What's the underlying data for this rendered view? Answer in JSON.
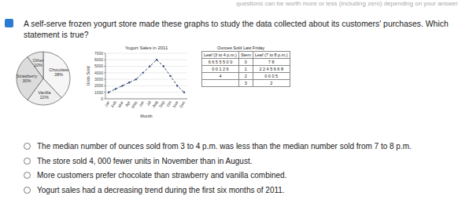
{
  "header": {
    "note": "questions can be worth more or less (including zero) depending on your answer"
  },
  "question": {
    "text": "A self-serve frozen yogurt store made these graphs to study the data collected about its customers' purchases. Which statement is true?"
  },
  "chart_data": [
    {
      "type": "pie",
      "categories": [
        "Chocolate",
        "Vanilla",
        "Strawberry",
        "Other"
      ],
      "values": [
        38,
        22,
        30,
        10
      ],
      "value_labels": [
        "38%",
        "22%",
        "30%",
        "10%"
      ],
      "colors": [
        "#f6f6f6",
        "#eeeeee",
        "#dcdcdc",
        "#e6e6e6"
      ],
      "data_labels": true
    },
    {
      "type": "line",
      "title": "Yogurt Sales in 2011",
      "x_label": "Month",
      "y_label": "Units Sold",
      "categories": [
        "Jan",
        "Feb",
        "Mar",
        "Apr",
        "May",
        "Jun",
        "Jul",
        "Aug",
        "Sep",
        "Oct",
        "Nov",
        "Dec"
      ],
      "series": [
        {
          "name": "Units Sold",
          "color": "#3a4a78",
          "marker": "circle",
          "line_style": "dashed",
          "values": [
            1000,
            1500,
            2000,
            2500,
            3000,
            4000,
            5000,
            6000,
            5000,
            3500,
            2000,
            1000
          ]
        }
      ],
      "ylim": [
        0,
        7000
      ],
      "yticks": [
        0,
        1000,
        2000,
        3000,
        4000,
        5000,
        6000,
        7000
      ],
      "grid": true
    }
  ],
  "stem_leaf": {
    "title": "Ounces Sold Last Friday",
    "headers": [
      "Leaf (3 to 4 p.m.)",
      "Stem",
      "Leaf (7 to 8 p.m.)"
    ],
    "rows": [
      [
        "6 6 5 5 5 0 0",
        "0",
        "7 8"
      ],
      [
        "0 0 1 2 6",
        "1",
        "2 2 4 5 6 6 8"
      ],
      [
        "4",
        "2",
        "0 0 0 5"
      ],
      [
        null,
        "3",
        "2"
      ]
    ]
  },
  "options": [
    "The median number of ounces sold from 3 to 4 p.m. was less than the median number sold from 7 to 8 p.m.",
    "The store sold 4, 000 fewer units in November than in August.",
    "More customers prefer chocolate than strawberry and vanilla combined.",
    "Yogurt sales had a decreasing trend during the first six months of 2011."
  ]
}
